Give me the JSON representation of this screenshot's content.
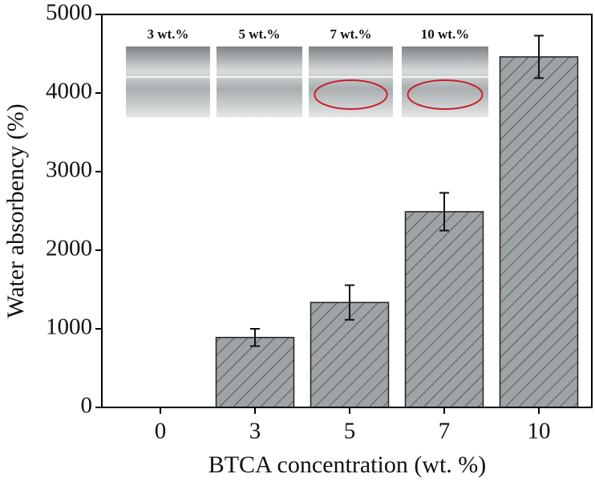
{
  "chart_data": {
    "type": "bar",
    "xlabel": "BTCA concentration (wt. %)",
    "ylabel": "Water absorbency (%)",
    "categories": [
      "0",
      "3",
      "5",
      "7",
      "10"
    ],
    "values": [
      0,
      890,
      1335,
      2490,
      4460
    ],
    "errors": [
      null,
      110,
      220,
      240,
      270
    ],
    "color": "#9ea3a6",
    "ylim": [
      0,
      5000
    ],
    "yticks": [
      0,
      1000,
      2000,
      3000,
      4000,
      5000
    ],
    "inset_labels": [
      "3 wt.%",
      "5 wt.%",
      "7 wt.%",
      "10 wt.%"
    ]
  }
}
